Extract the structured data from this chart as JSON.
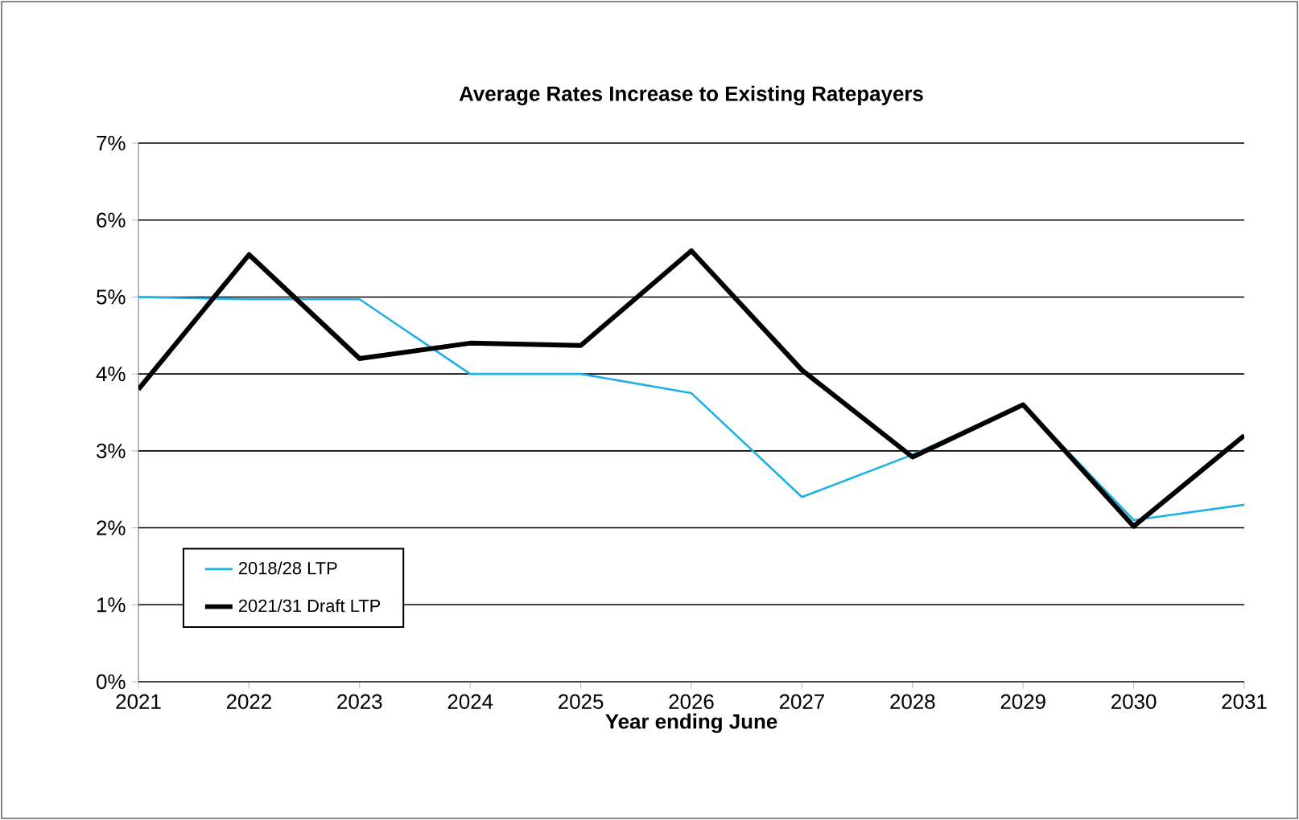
{
  "chart_data": {
    "type": "line",
    "title": "Average Rates Increase to Existing Ratepayers",
    "xlabel": "Year ending June",
    "x": [
      2021,
      2022,
      2023,
      2024,
      2025,
      2026,
      2027,
      2028,
      2029,
      2030,
      2031
    ],
    "series": [
      {
        "name": "2018/28 LTP",
        "color": "#1fb0e6",
        "values": [
          5.0,
          4.97,
          4.97,
          4.0,
          4.0,
          3.75,
          2.4,
          2.95,
          3.6,
          2.1,
          2.3
        ]
      },
      {
        "name": "2021/31 Draft LTP",
        "color": "#000000",
        "values": [
          3.8,
          5.55,
          4.2,
          4.4,
          4.37,
          5.6,
          4.05,
          2.92,
          3.6,
          2.02,
          3.2
        ]
      }
    ],
    "xlim": [
      2021,
      2031
    ],
    "xticks": [
      2021,
      2022,
      2023,
      2024,
      2025,
      2026,
      2027,
      2028,
      2029,
      2030,
      2031
    ],
    "ylim": [
      0,
      7
    ],
    "yticks": [
      {
        "value": 0,
        "label": "0%"
      },
      {
        "value": 1,
        "label": "1%"
      },
      {
        "value": 2,
        "label": "2%"
      },
      {
        "value": 3,
        "label": "3%"
      },
      {
        "value": 4,
        "label": "4%"
      },
      {
        "value": 5,
        "label": "5%"
      },
      {
        "value": 6,
        "label": "6%"
      },
      {
        "value": 7,
        "label": "7%"
      }
    ],
    "grid": "y",
    "legend": "bottom left",
    "marker": "none",
    "line_style": "solid"
  }
}
